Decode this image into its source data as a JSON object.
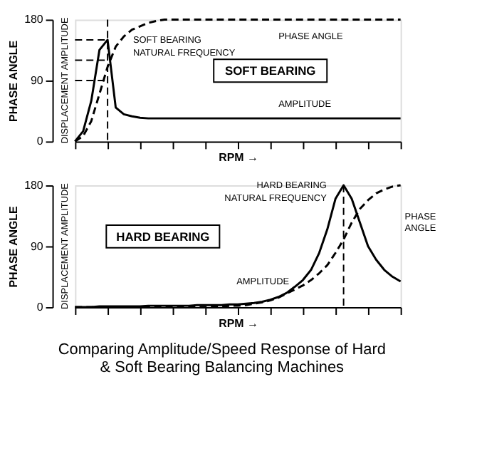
{
  "chart_data": [
    {
      "type": "line",
      "xlabel": "RPM →",
      "ylabel": "PHASE ANGLE",
      "ylim": [
        0,
        180
      ],
      "yticks": [
        0,
        90,
        180
      ],
      "tick_labels": "y",
      "grid": false,
      "categories": [
        null,
        null,
        null,
        null,
        null,
        null,
        null,
        null,
        null,
        null,
        null,
        null,
        null,
        null,
        null,
        null,
        null,
        null,
        null,
        null,
        null,
        null,
        null,
        null,
        null,
        null,
        null,
        null,
        null,
        null,
        null,
        null,
        null,
        null,
        null,
        null,
        null,
        null,
        null,
        null,
        null
      ],
      "series": [
        {
          "name": "AMPLITUDE",
          "color": "#000000",
          "line_style": "solid",
          "values": [
            0,
            15,
            60,
            135,
            150,
            50,
            40,
            37,
            35,
            34,
            34,
            34,
            34,
            34,
            34,
            34,
            34,
            34,
            34,
            34,
            34,
            34,
            34,
            34,
            34,
            34,
            34,
            34,
            34,
            34,
            34,
            34,
            34,
            34,
            34,
            34,
            34,
            34,
            34,
            34,
            34
          ]
        },
        {
          "name": "PHASE ANGLE",
          "color": "#000000",
          "line_style": "dashed",
          "values": [
            0,
            8,
            30,
            70,
            110,
            140,
            155,
            165,
            170,
            175,
            178,
            180,
            180,
            180,
            180,
            180,
            180,
            180,
            180,
            180,
            180,
            180,
            180,
            180,
            180,
            180,
            180,
            180,
            180,
            180,
            180,
            180,
            180,
            180,
            180,
            180,
            180,
            180,
            180,
            180,
            180
          ]
        }
      ],
      "ref_lines": [
        {
          "axis": "x",
          "value": null,
          "line_style": "dashed"
        },
        {
          "axis": "y",
          "value": 150,
          "line_style": "dashed"
        },
        {
          "axis": "y",
          "value": 120,
          "line_style": "dashed"
        },
        {
          "axis": "y",
          "value": 90,
          "line_style": "dashed"
        }
      ],
      "annotations": [
        "SOFT BEARING",
        "DISPLACEMENT AMPLITUDE",
        "SOFT BEARING NATURAL FREQUENCY"
      ]
    },
    {
      "type": "line",
      "xlabel": "RPM →",
      "ylabel": "PHASE ANGLE",
      "ylim": [
        0,
        180
      ],
      "yticks": [
        0,
        90,
        180
      ],
      "tick_labels": "y",
      "grid": false,
      "categories": [
        null,
        null,
        null,
        null,
        null,
        null,
        null,
        null,
        null,
        null,
        null,
        null,
        null,
        null,
        null,
        null,
        null,
        null,
        null,
        null,
        null,
        null,
        null,
        null,
        null,
        null,
        null,
        null,
        null,
        null,
        null,
        null,
        null,
        null,
        null,
        null,
        null,
        null,
        null,
        null,
        null
      ],
      "series": [
        {
          "name": "AMPLITUDE",
          "color": "#000000",
          "line_style": "solid",
          "values": [
            0,
            0,
            0,
            1,
            1,
            1,
            1,
            1,
            1,
            2,
            2,
            2,
            2,
            2,
            2,
            3,
            3,
            3,
            3,
            4,
            4,
            5,
            6,
            8,
            11,
            15,
            21,
            30,
            40,
            55,
            80,
            115,
            160,
            180,
            160,
            125,
            90,
            70,
            55,
            45,
            38
          ]
        },
        {
          "name": "PHASE ANGLE",
          "color": "#000000",
          "line_style": "dashed",
          "values": [
            0,
            0,
            0,
            0,
            0,
            0,
            0,
            0,
            0,
            0,
            0,
            0,
            0,
            0,
            0,
            0,
            0,
            1,
            1,
            2,
            2,
            3,
            5,
            7,
            10,
            14,
            20,
            26,
            32,
            40,
            50,
            62,
            80,
            100,
            125,
            145,
            158,
            168,
            174,
            178,
            180
          ]
        }
      ],
      "ref_lines": [
        {
          "axis": "x",
          "value": null,
          "line_style": "dashed"
        }
      ],
      "annotations": [
        "HARD BEARING",
        "DISPLACEMENT AMPLITUDE",
        "HARD BEARING NATURAL FREQUENCY",
        "Comparing Amplitude/Speed Response of Hard & Soft Bearing Balancing Machines"
      ]
    }
  ]
}
